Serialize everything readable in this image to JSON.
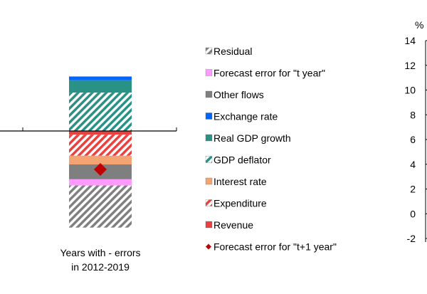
{
  "chart_data": [
    {
      "type": "bar",
      "stacked": true,
      "categories": [
        "Years with - errors in 2012-2019"
      ],
      "category_label_lines": [
        "Years with - errors",
        "in 2012-2019"
      ],
      "series": [
        {
          "name": "Residual",
          "values": [
            -3.4
          ],
          "color": "#808080",
          "pattern": "hatch"
        },
        {
          "name": "Forecast error for \"t year\"",
          "values": [
            -0.5
          ],
          "color": "#ff99ff",
          "pattern": "solid"
        },
        {
          "name": "Other flows",
          "values": [
            -1.2
          ],
          "color": "#7f7f7f",
          "pattern": "solid"
        },
        {
          "name": "Exchange rate",
          "values": [
            0.3
          ],
          "color": "#0066ff",
          "pattern": "solid"
        },
        {
          "name": "Real GDP growth",
          "values": [
            1.0
          ],
          "color": "#2a9187",
          "pattern": "solid"
        },
        {
          "name": "GDP deflator",
          "values": [
            3.1
          ],
          "color": "#2a9187",
          "pattern": "hatch"
        },
        {
          "name": "Interest rate",
          "values": [
            -0.7
          ],
          "color": "#f4a373",
          "pattern": "solid"
        },
        {
          "name": "Expenditure",
          "values": [
            -1.7
          ],
          "color": "#e8413f",
          "pattern": "hatch"
        },
        {
          "name": "Revenue",
          "values": [
            -0.3
          ],
          "color": "#e8413f",
          "pattern": "solid"
        }
      ],
      "markers": [
        {
          "name": "Forecast error for \"t+1 year\"",
          "values": [
            -3.1
          ],
          "color": "#c00000",
          "shape": "diamond"
        }
      ],
      "legend_position": "right"
    },
    {
      "type": "bar",
      "ylabel": "%",
      "ylim": [
        -2,
        14
      ],
      "yticks": [
        "14",
        "12",
        "10",
        "8",
        "6",
        "4",
        "2",
        "0",
        "-2"
      ]
    }
  ]
}
